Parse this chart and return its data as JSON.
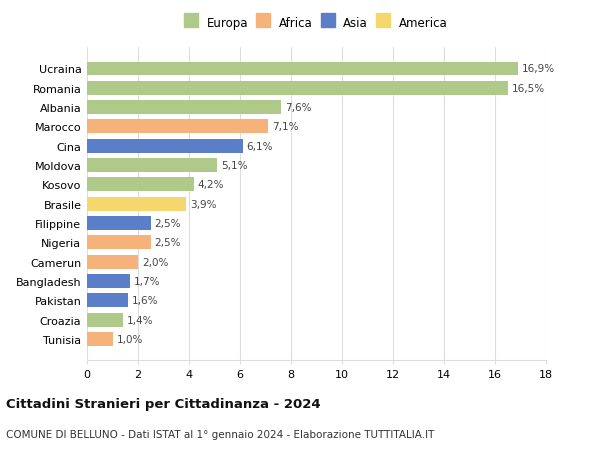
{
  "countries": [
    "Tunisia",
    "Croazia",
    "Pakistan",
    "Bangladesh",
    "Camerun",
    "Nigeria",
    "Filippine",
    "Brasile",
    "Kosovo",
    "Moldova",
    "Cina",
    "Marocco",
    "Albania",
    "Romania",
    "Ucraina"
  ],
  "values": [
    1.0,
    1.4,
    1.6,
    1.7,
    2.0,
    2.5,
    2.5,
    3.9,
    4.2,
    5.1,
    6.1,
    7.1,
    7.6,
    16.5,
    16.9
  ],
  "labels": [
    "1,0%",
    "1,4%",
    "1,6%",
    "1,7%",
    "2,0%",
    "2,5%",
    "2,5%",
    "3,9%",
    "4,2%",
    "5,1%",
    "6,1%",
    "7,1%",
    "7,6%",
    "16,5%",
    "16,9%"
  ],
  "continents": [
    "Africa",
    "Europa",
    "Asia",
    "Asia",
    "Africa",
    "Africa",
    "Asia",
    "America",
    "Europa",
    "Europa",
    "Asia",
    "Africa",
    "Europa",
    "Europa",
    "Europa"
  ],
  "colors": {
    "Europa": "#aec98a",
    "Africa": "#f5b27a",
    "Asia": "#5b7ec9",
    "America": "#f5d76e"
  },
  "legend_items": [
    "Europa",
    "Africa",
    "Asia",
    "America"
  ],
  "title": "Cittadini Stranieri per Cittadinanza - 2024",
  "subtitle": "COMUNE DI BELLUNO - Dati ISTAT al 1° gennaio 2024 - Elaborazione TUTTITALIA.IT",
  "xlim": [
    0,
    18
  ],
  "xticks": [
    0,
    2,
    4,
    6,
    8,
    10,
    12,
    14,
    16,
    18
  ],
  "background_color": "#ffffff",
  "grid_color": "#dddddd"
}
